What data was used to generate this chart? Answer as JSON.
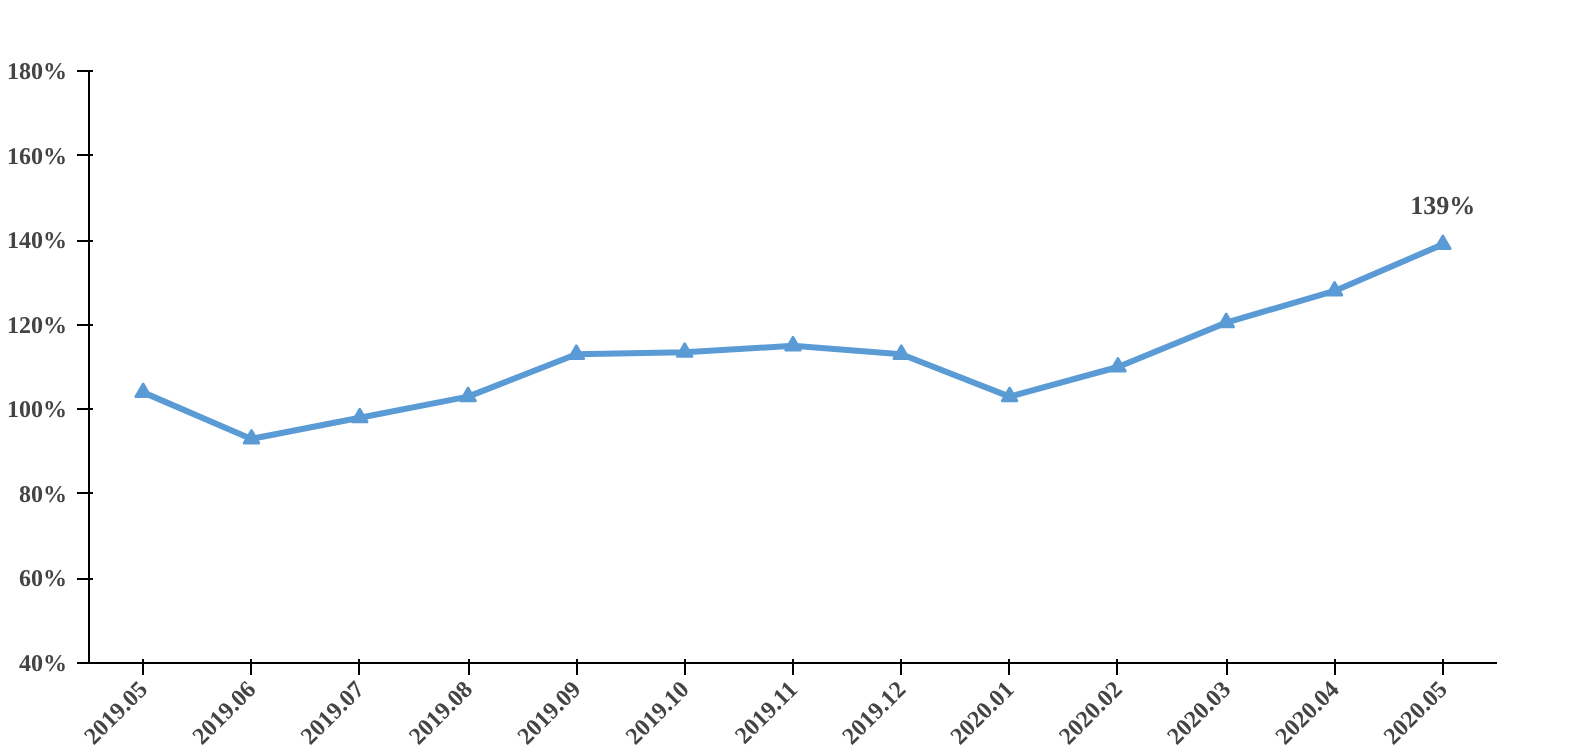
{
  "chart_data": {
    "type": "line",
    "categories": [
      "2019.05",
      "2019.06",
      "2019.07",
      "2019.08",
      "2019.09",
      "2019.10",
      "2019.11",
      "2019.12",
      "2020.01",
      "2020.02",
      "2020.03",
      "2020.04",
      "2020.05"
    ],
    "series": [
      {
        "color": "#5b9bd5",
        "values": [
          104,
          93,
          98,
          103,
          113,
          113.5,
          115,
          113,
          103,
          110,
          120.5,
          128,
          139
        ],
        "value_labels": [
          null,
          null,
          null,
          null,
          null,
          null,
          null,
          null,
          null,
          null,
          null,
          null,
          "139%"
        ]
      }
    ],
    "ylim": [
      40,
      180
    ],
    "yticks": [
      {
        "value": 40,
        "label": "40%"
      },
      {
        "value": 60,
        "label": "60%"
      },
      {
        "value": 80,
        "label": "80%"
      },
      {
        "value": 100,
        "label": "100%"
      },
      {
        "value": 120,
        "label": "120%"
      },
      {
        "value": 140,
        "label": "140%"
      },
      {
        "value": 160,
        "label": "160%"
      },
      {
        "value": 180,
        "label": "180%"
      }
    ],
    "marker": "triangle",
    "line_style": "solid"
  }
}
